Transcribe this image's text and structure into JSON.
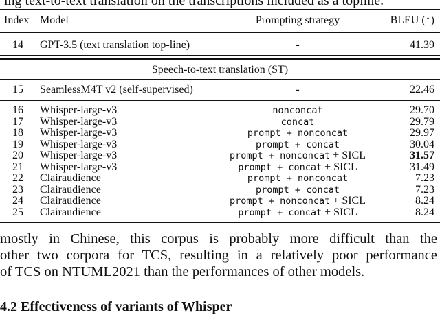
{
  "caption_fragment": "ing text-to-text translation on the transcriptions included as a topline.",
  "table": {
    "headers": [
      "Index",
      "Model",
      "Prompting strategy",
      "BLEU (↑)"
    ],
    "topline_row": {
      "index": "14",
      "model": "GPT-3.5 (text translation top-line)",
      "strategy": "-",
      "bleu": "41.39"
    },
    "section_title": "Speech-to-text translation (ST)",
    "seamless_row": {
      "index": "15",
      "model": "SeamlessM4T v2 (self-supervised)",
      "strategy": "-",
      "bleu": "22.46"
    },
    "rows": [
      {
        "index": "16",
        "model": "Whisper-large-v3",
        "strategy_code": "nonconcat",
        "strategy_suffix": "",
        "bleu": "29.70",
        "bold": false
      },
      {
        "index": "17",
        "model": "Whisper-large-v3",
        "strategy_code": "concat",
        "strategy_suffix": "",
        "bleu": "29.79",
        "bold": false
      },
      {
        "index": "18",
        "model": "Whisper-large-v3",
        "strategy_code": "prompt + nonconcat",
        "strategy_suffix": "",
        "bleu": "29.97",
        "bold": false
      },
      {
        "index": "19",
        "model": "Whisper-large-v3",
        "strategy_code": "prompt + concat",
        "strategy_suffix": "",
        "bleu": "30.04",
        "bold": false
      },
      {
        "index": "20",
        "model": "Whisper-large-v3",
        "strategy_code": "prompt + nonconcat",
        "strategy_suffix": " + SICL",
        "bleu": "31.57",
        "bold": true
      },
      {
        "index": "21",
        "model": "Whisper-large-v3",
        "strategy_code": "prompt + concat",
        "strategy_suffix": " + SICL",
        "bleu": "31.49",
        "bold": false
      },
      {
        "index": "22",
        "model": "Clairaudience",
        "strategy_code": "prompt + nonconcat",
        "strategy_suffix": "",
        "bleu": "7.23",
        "bold": false
      },
      {
        "index": "23",
        "model": "Clairaudience",
        "strategy_code": "prompt + concat",
        "strategy_suffix": "",
        "bleu": "7.23",
        "bold": false
      },
      {
        "index": "24",
        "model": "Clairaudience",
        "strategy_code": "prompt + nonconcat",
        "strategy_suffix": " + SICL",
        "bleu": "8.24",
        "bold": false
      },
      {
        "index": "25",
        "model": "Clairaudience",
        "strategy_code": "prompt + concat",
        "strategy_suffix": " + SICL",
        "bleu": "8.24",
        "bold": false
      }
    ]
  },
  "paragraph": {
    "lines": [
      "mostly in Chinese, this corpus is probably more difficult than the",
      "other two corpora for TCS, resulting in a relatively poor performance",
      "of TCS on NTUML2021 than the performances of other models."
    ]
  },
  "next_section_heading": "4.2   Effectiveness of variants of Whisper"
}
